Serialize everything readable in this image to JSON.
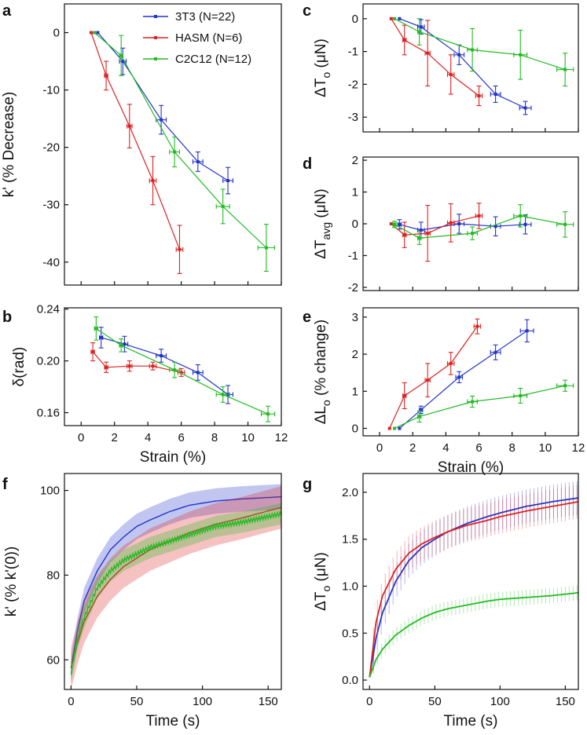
{
  "colors": {
    "3T3": "#2233cc",
    "HASM": "#dd2222",
    "C2C12": "#22bb22"
  },
  "legend": [
    {
      "key": "3T3",
      "label": "3T3 (N=22)"
    },
    {
      "key": "HASM",
      "label": "HASM (N=6)"
    },
    {
      "key": "C2C12",
      "label": "C2C12 (N=12)"
    }
  ],
  "chart_data": [
    {
      "id": "a",
      "letter": "a",
      "type": "line",
      "xlabel": "",
      "ylabel": "k' (% Decrease)",
      "xlim": [
        -1,
        12
      ],
      "ylim": [
        -44,
        5
      ],
      "xticks": [
        0,
        2,
        4,
        6,
        8,
        10,
        12
      ],
      "xtick_labels": false,
      "yticks": [
        0,
        -10,
        -20,
        -30,
        -40
      ],
      "ytick_labels": [
        "0",
        "-10",
        "-20",
        "-30",
        "-40"
      ],
      "series": [
        {
          "name": "3T3",
          "points": [
            {
              "x": 1.0,
              "y": 0.0,
              "xe": 0,
              "ye": 0
            },
            {
              "x": 2.5,
              "y": -5.0,
              "xe": 0.2,
              "ye": 2.3
            },
            {
              "x": 4.8,
              "y": -15.2,
              "xe": 0.3,
              "ye": 2.5
            },
            {
              "x": 7.0,
              "y": -22.5,
              "xe": 0.3,
              "ye": 1.7
            },
            {
              "x": 8.8,
              "y": -25.8,
              "xe": 0.3,
              "ye": 2.3
            }
          ]
        },
        {
          "name": "HASM",
          "points": [
            {
              "x": 0.6,
              "y": 0.0,
              "xe": 0,
              "ye": 0
            },
            {
              "x": 1.5,
              "y": -7.5,
              "xe": 0.1,
              "ye": 2.5
            },
            {
              "x": 2.9,
              "y": -16.3,
              "xe": 0.15,
              "ye": 3.8
            },
            {
              "x": 4.3,
              "y": -25.8,
              "xe": 0.2,
              "ye": 4.2
            },
            {
              "x": 5.9,
              "y": -37.8,
              "xe": 0.2,
              "ye": 4.2
            }
          ]
        },
        {
          "name": "C2C12",
          "points": [
            {
              "x": 0.8,
              "y": 0.0,
              "xe": 0,
              "ye": 0
            },
            {
              "x": 2.4,
              "y": -4.0,
              "xe": 0.1,
              "ye": 3.5
            },
            {
              "x": 5.6,
              "y": -20.8,
              "xe": 0.3,
              "ye": 2.6
            },
            {
              "x": 8.5,
              "y": -30.3,
              "xe": 0.4,
              "ye": 3.0
            },
            {
              "x": 11.1,
              "y": -37.5,
              "xe": 0.5,
              "ye": 4.1
            }
          ]
        }
      ]
    },
    {
      "id": "b",
      "letter": "b",
      "type": "line",
      "xlabel": "Strain (%)",
      "ylabel": "δ(rad)",
      "xlim": [
        -1,
        12
      ],
      "ylim": [
        0.15,
        0.241
      ],
      "xticks": [
        0,
        2,
        4,
        6,
        8,
        10,
        12
      ],
      "xtick_text": [
        "0",
        "2",
        "4",
        "6",
        "8",
        "10",
        "12"
      ],
      "yticks": [
        0.16,
        0.2,
        0.24
      ],
      "ytick_labels": [
        "0.16",
        "0.20",
        "0.24"
      ],
      "series": [
        {
          "name": "3T3",
          "points": [
            {
              "x": 1.2,
              "y": 0.218,
              "xe": 0.1,
              "ye": 0.008
            },
            {
              "x": 2.6,
              "y": 0.213,
              "xe": 0.2,
              "ye": 0.006
            },
            {
              "x": 4.8,
              "y": 0.204,
              "xe": 0.3,
              "ye": 0.005
            },
            {
              "x": 7.0,
              "y": 0.191,
              "xe": 0.3,
              "ye": 0.006
            },
            {
              "x": 8.8,
              "y": 0.174,
              "xe": 0.3,
              "ye": 0.007
            }
          ]
        },
        {
          "name": "HASM",
          "points": [
            {
              "x": 0.7,
              "y": 0.207,
              "xe": 0.1,
              "ye": 0.007
            },
            {
              "x": 1.5,
              "y": 0.195,
              "xe": 0.1,
              "ye": 0.004
            },
            {
              "x": 2.9,
              "y": 0.196,
              "xe": 0.15,
              "ye": 0.004
            },
            {
              "x": 4.3,
              "y": 0.196,
              "xe": 0.2,
              "ye": 0.003
            },
            {
              "x": 6.0,
              "y": 0.191,
              "xe": 0.2,
              "ye": 0.003
            }
          ]
        },
        {
          "name": "C2C12",
          "points": [
            {
              "x": 0.9,
              "y": 0.225,
              "xe": 0.1,
              "ye": 0.009
            },
            {
              "x": 2.4,
              "y": 0.212,
              "xe": 0.1,
              "ye": 0.005
            },
            {
              "x": 5.6,
              "y": 0.193,
              "xe": 0.3,
              "ye": 0.006
            },
            {
              "x": 8.5,
              "y": 0.174,
              "xe": 0.4,
              "ye": 0.006
            },
            {
              "x": 11.2,
              "y": 0.159,
              "xe": 0.4,
              "ye": 0.006
            }
          ]
        }
      ]
    },
    {
      "id": "c",
      "letter": "c",
      "type": "line",
      "xlabel": "",
      "ylabel_main": "ΔT",
      "ylabel_sub": "o",
      "ylabel_unit": " (μN)",
      "xlim": [
        -1,
        12
      ],
      "ylim": [
        -3.45,
        0.45
      ],
      "xticks": [
        0,
        2,
        4,
        6,
        8,
        10,
        12
      ],
      "xtick_labels": false,
      "yticks": [
        0,
        -1,
        -2,
        -3
      ],
      "ytick_labels": [
        "0",
        "-1",
        "-2",
        "-3"
      ],
      "series": [
        {
          "name": "3T3",
          "points": [
            {
              "x": 1.2,
              "y": 0.0,
              "xe": 0,
              "ye": 0
            },
            {
              "x": 2.5,
              "y": -0.25,
              "xe": 0.2,
              "ye": 0.22
            },
            {
              "x": 4.8,
              "y": -1.1,
              "xe": 0.3,
              "ye": 0.3
            },
            {
              "x": 7.0,
              "y": -2.3,
              "xe": 0.3,
              "ye": 0.25
            },
            {
              "x": 8.8,
              "y": -2.72,
              "xe": 0.35,
              "ye": 0.2
            }
          ]
        },
        {
          "name": "HASM",
          "points": [
            {
              "x": 0.7,
              "y": 0.0,
              "xe": 0,
              "ye": 0
            },
            {
              "x": 1.5,
              "y": -0.65,
              "xe": 0.1,
              "ye": 0.45
            },
            {
              "x": 2.9,
              "y": -1.05,
              "xe": 0.15,
              "ye": 1.0
            },
            {
              "x": 4.3,
              "y": -1.7,
              "xe": 0.2,
              "ye": 0.6
            },
            {
              "x": 6.0,
              "y": -2.35,
              "xe": 0.2,
              "ye": 0.3
            }
          ]
        },
        {
          "name": "C2C12",
          "points": [
            {
              "x": 0.9,
              "y": 0.0,
              "xe": 0,
              "ye": 0
            },
            {
              "x": 2.4,
              "y": -0.4,
              "xe": 0.1,
              "ye": 0.4
            },
            {
              "x": 5.6,
              "y": -0.95,
              "xe": 0.3,
              "ye": 0.65
            },
            {
              "x": 8.5,
              "y": -1.1,
              "xe": 0.4,
              "ye": 0.75
            },
            {
              "x": 11.2,
              "y": -1.55,
              "xe": 0.5,
              "ye": 0.5
            }
          ]
        }
      ]
    },
    {
      "id": "d",
      "letter": "d",
      "type": "line",
      "xlabel": "",
      "ylabel_main": "ΔT",
      "ylabel_sub": "avg",
      "ylabel_unit": " (μN)",
      "xlim": [
        -1,
        12
      ],
      "ylim": [
        -2.1,
        2.1
      ],
      "xticks": [
        0,
        2,
        4,
        6,
        8,
        10,
        12
      ],
      "xtick_labels": false,
      "yticks": [
        2,
        1,
        0,
        -1,
        -2
      ],
      "ytick_labels": [
        "2",
        "1",
        "0",
        "-1",
        "-2"
      ],
      "series": [
        {
          "name": "3T3",
          "points": [
            {
              "x": 1.2,
              "y": -0.02,
              "xe": 0.1,
              "ye": 0.15
            },
            {
              "x": 2.5,
              "y": -0.2,
              "xe": 0.2,
              "ye": 0.25
            },
            {
              "x": 4.8,
              "y": 0.0,
              "xe": 0.3,
              "ye": 0.3
            },
            {
              "x": 7.0,
              "y": -0.08,
              "xe": 0.3,
              "ye": 0.3
            },
            {
              "x": 8.8,
              "y": -0.02,
              "xe": 0.35,
              "ye": 0.3
            }
          ]
        },
        {
          "name": "HASM",
          "points": [
            {
              "x": 0.7,
              "y": 0.0,
              "xe": 0,
              "ye": 0
            },
            {
              "x": 1.5,
              "y": -0.35,
              "xe": 0.1,
              "ye": 0.4
            },
            {
              "x": 2.9,
              "y": -0.3,
              "xe": 0.15,
              "ye": 0.88
            },
            {
              "x": 4.3,
              "y": 0.03,
              "xe": 0.2,
              "ye": 0.6
            },
            {
              "x": 6.0,
              "y": 0.25,
              "xe": 0.2,
              "ye": 0.4
            }
          ]
        },
        {
          "name": "C2C12",
          "points": [
            {
              "x": 0.9,
              "y": -0.02,
              "xe": 0.1,
              "ye": 0.1
            },
            {
              "x": 2.4,
              "y": -0.45,
              "xe": 0.1,
              "ye": 0.2
            },
            {
              "x": 5.6,
              "y": -0.3,
              "xe": 0.3,
              "ye": 0.2
            },
            {
              "x": 8.5,
              "y": 0.25,
              "xe": 0.4,
              "ye": 0.35
            },
            {
              "x": 11.2,
              "y": -0.02,
              "xe": 0.5,
              "ye": 0.4
            }
          ]
        }
      ]
    },
    {
      "id": "e",
      "letter": "e",
      "type": "line",
      "xlabel": "Strain (%)",
      "ylabel_main": "ΔL",
      "ylabel_sub": "o",
      "ylabel_unit": " (% change)",
      "xlim": [
        -1,
        12
      ],
      "ylim": [
        -0.2,
        3.25
      ],
      "xticks": [
        0,
        2,
        4,
        6,
        8,
        10,
        12
      ],
      "xtick_text": [
        "0",
        "2",
        "4",
        "6",
        "8",
        "10",
        "12"
      ],
      "yticks": [
        0,
        1,
        2,
        3
      ],
      "ytick_labels": [
        "0",
        "1",
        "2",
        "3"
      ],
      "series": [
        {
          "name": "3T3",
          "points": [
            {
              "x": 1.2,
              "y": 0.0,
              "xe": 0,
              "ye": 0
            },
            {
              "x": 2.5,
              "y": 0.5,
              "xe": 0.1,
              "ye": 0.1
            },
            {
              "x": 4.8,
              "y": 1.38,
              "xe": 0.2,
              "ye": 0.15
            },
            {
              "x": 7.0,
              "y": 2.05,
              "xe": 0.3,
              "ye": 0.2
            },
            {
              "x": 8.9,
              "y": 2.63,
              "xe": 0.4,
              "ye": 0.3
            }
          ]
        },
        {
          "name": "HASM",
          "points": [
            {
              "x": 0.6,
              "y": 0.0,
              "xe": 0,
              "ye": 0
            },
            {
              "x": 1.5,
              "y": 0.88,
              "xe": 0.1,
              "ye": 0.35
            },
            {
              "x": 2.9,
              "y": 1.3,
              "xe": 0.15,
              "ye": 0.45
            },
            {
              "x": 4.3,
              "y": 1.75,
              "xe": 0.2,
              "ye": 0.3
            },
            {
              "x": 5.9,
              "y": 2.75,
              "xe": 0.2,
              "ye": 0.2
            }
          ]
        },
        {
          "name": "C2C12",
          "points": [
            {
              "x": 0.9,
              "y": 0.0,
              "xe": 0,
              "ye": 0
            },
            {
              "x": 2.4,
              "y": 0.32,
              "xe": 0.1,
              "ye": 0.15
            },
            {
              "x": 5.6,
              "y": 0.72,
              "xe": 0.3,
              "ye": 0.15
            },
            {
              "x": 8.5,
              "y": 0.88,
              "xe": 0.4,
              "ye": 0.2
            },
            {
              "x": 11.2,
              "y": 1.15,
              "xe": 0.5,
              "ye": 0.15
            }
          ]
        }
      ]
    },
    {
      "id": "f",
      "letter": "f",
      "type": "area",
      "xlabel": "Time (s)",
      "ylabel": "k' (% k'(0))",
      "xlim": [
        -5,
        160
      ],
      "ylim": [
        53,
        104
      ],
      "xticks": [
        0,
        50,
        100,
        150
      ],
      "xtick_text": [
        "0",
        "50",
        "100",
        "150"
      ],
      "yticks": [
        60,
        80,
        100
      ],
      "ytick_labels": [
        "60",
        "80",
        "100"
      ],
      "series": [
        {
          "name": "3T3",
          "t": [
            0,
            5,
            10,
            20,
            30,
            40,
            50,
            60,
            75,
            90,
            100,
            110,
            130,
            160
          ],
          "mean": [
            58,
            67,
            74,
            81,
            86,
            89,
            91.5,
            93,
            95,
            96.5,
            97,
            97.5,
            98,
            98.5
          ],
          "sd": 3.0
        },
        {
          "name": "HASM",
          "t": [
            0,
            5,
            10,
            20,
            30,
            40,
            50,
            60,
            75,
            90,
            100,
            110,
            130,
            160
          ],
          "mean": [
            58,
            64,
            69,
            75,
            79,
            82,
            84,
            86,
            88,
            90,
            91,
            92,
            93.5,
            96
          ],
          "sd": 5.0
        },
        {
          "name": "C2C12",
          "t": [
            0,
            5,
            10,
            20,
            30,
            40,
            50,
            60,
            75,
            90,
            100,
            110,
            130,
            160
          ],
          "mean": [
            57,
            65,
            70,
            77,
            81,
            83.5,
            85,
            86.5,
            88,
            89.5,
            90.5,
            91.5,
            92.5,
            94.5
          ],
          "sd": 2.5
        }
      ]
    },
    {
      "id": "g",
      "letter": "g",
      "type": "line",
      "xlabel": "Time (s)",
      "ylabel_main": "ΔT",
      "ylabel_sub": "o",
      "ylabel_unit": " (μN)",
      "xlim": [
        -5,
        160
      ],
      "ylim": [
        -0.1,
        2.2
      ],
      "xticks": [
        0,
        50,
        100,
        150
      ],
      "xtick_text": [
        "0",
        "50",
        "100",
        "150"
      ],
      "yticks": [
        0.0,
        0.5,
        1.0,
        1.5,
        2.0
      ],
      "ytick_labels": [
        "0.0",
        "0.5",
        "1.0",
        "1.5",
        "2.0"
      ],
      "series": [
        {
          "name": "3T3",
          "t": [
            0,
            5,
            10,
            20,
            30,
            40,
            50,
            60,
            75,
            90,
            100,
            120,
            140,
            160
          ],
          "mean": [
            0.03,
            0.45,
            0.72,
            1.05,
            1.27,
            1.41,
            1.5,
            1.58,
            1.67,
            1.74,
            1.78,
            1.85,
            1.9,
            1.94
          ],
          "sd": 0.18
        },
        {
          "name": "HASM",
          "t": [
            0,
            5,
            10,
            20,
            30,
            40,
            50,
            60,
            75,
            90,
            100,
            120,
            140,
            160
          ],
          "mean": [
            0.03,
            0.62,
            0.9,
            1.18,
            1.35,
            1.45,
            1.52,
            1.58,
            1.65,
            1.7,
            1.74,
            1.8,
            1.85,
            1.9
          ],
          "sd": 0.18
        },
        {
          "name": "C2C12",
          "t": [
            0,
            5,
            10,
            20,
            30,
            40,
            50,
            60,
            75,
            90,
            100,
            120,
            140,
            160
          ],
          "mean": [
            0.03,
            0.22,
            0.33,
            0.48,
            0.58,
            0.66,
            0.72,
            0.76,
            0.8,
            0.84,
            0.86,
            0.88,
            0.9,
            0.93
          ],
          "sd": 0.08
        }
      ]
    }
  ]
}
